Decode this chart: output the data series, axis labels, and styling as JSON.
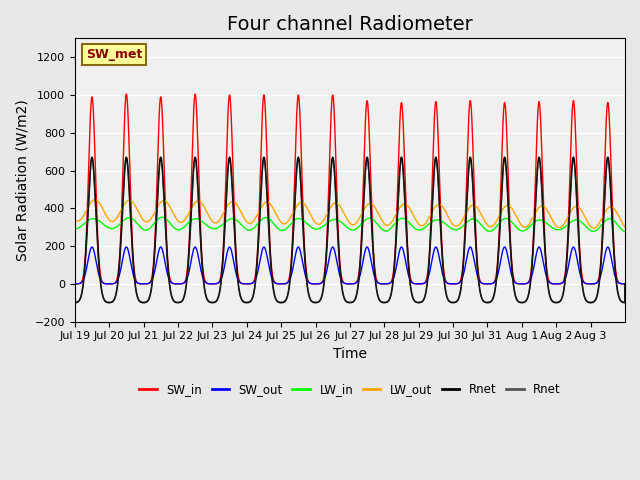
{
  "title": "Four channel Radiometer",
  "xlabel": "Time",
  "ylabel": "Solar Radiation (W/m2)",
  "ylim": [
    -200,
    1300
  ],
  "background_color": "#e8e8e8",
  "plot_bg_color": "#f0f0f0",
  "annotation_text": "SW_met",
  "annotation_bg": "#ffff99",
  "annotation_border": "#8b6914",
  "x_tick_labels": [
    "Jul 19",
    "Jul 20",
    "Jul 21",
    "Jul 22",
    "Jul 23",
    "Jul 24",
    "Jul 25",
    "Jul 26",
    "Jul 27",
    "Jul 28",
    "Jul 29",
    "Jul 30",
    "Jul 31",
    "Aug 1",
    "Aug 2",
    "Aug 3"
  ],
  "yticks": [
    -200,
    0,
    200,
    400,
    600,
    800,
    1000,
    1200
  ],
  "legend_entries": [
    {
      "label": "SW_in",
      "color": "red"
    },
    {
      "label": "SW_out",
      "color": "blue"
    },
    {
      "label": "LW_in",
      "color": "lime"
    },
    {
      "label": "LW_out",
      "color": "orange"
    },
    {
      "label": "Rnet",
      "color": "black"
    },
    {
      "label": "Rnet",
      "color": "#555555"
    }
  ],
  "num_days": 16,
  "sw_in_peak": 1000,
  "sw_out_peak": 200,
  "lw_in_base": 320,
  "lw_in_amp": 30,
  "lw_out_base": 390,
  "lw_out_amp": 60,
  "rnet_peak": 670,
  "rnet_night": -100,
  "title_fontsize": 14,
  "label_fontsize": 10,
  "tick_fontsize": 8
}
